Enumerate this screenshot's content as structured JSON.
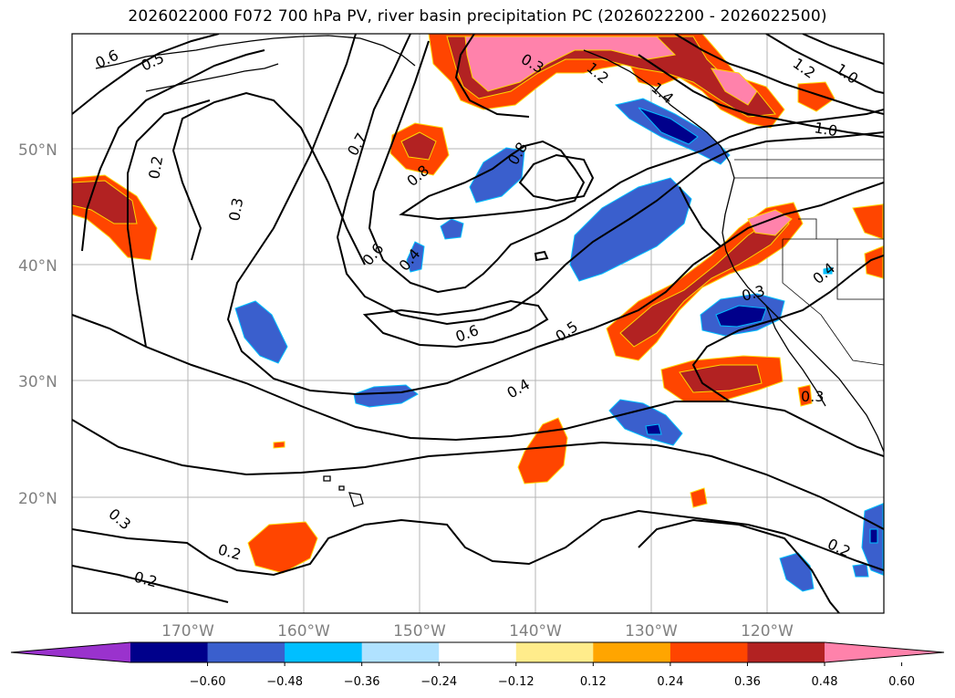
{
  "title": "2026022000 F072 700 hPa PV, river basin precipitation PC (2026022200 - 2026022500)",
  "axes": {
    "lat_labels": [
      "50°N",
      "40°N",
      "30°N",
      "20°N"
    ],
    "lon_labels": [
      "170°W",
      "160°W",
      "150°W",
      "140°W",
      "130°W",
      "120°W"
    ]
  },
  "contour_labels": [
    "0.6",
    "0.5",
    "0.2",
    "0.3",
    "0.7",
    "0.8",
    "0.8",
    "0.6",
    "0.4",
    "0.6",
    "0.5",
    "0.4",
    "0.3",
    "0.2",
    "0.2",
    "0.3",
    "0.2",
    "1.2",
    "1.0",
    "1.0",
    "1.4",
    "1.2",
    "0.4",
    "0.3",
    "0.3"
  ],
  "colorbar": {
    "ticks": [
      "−0.60",
      "−0.48",
      "−0.36",
      "−0.24",
      "−0.12",
      "0.12",
      "0.24",
      "0.36",
      "0.48",
      "0.60"
    ],
    "colors": [
      "#9a32cd",
      "#00008b",
      "#3a5fcd",
      "#00bfff",
      "#b0e2ff",
      "#ffffff",
      "#ffec8b",
      "#ffa500",
      "#ff4500",
      "#b22222",
      "#ff82ab"
    ]
  }
}
